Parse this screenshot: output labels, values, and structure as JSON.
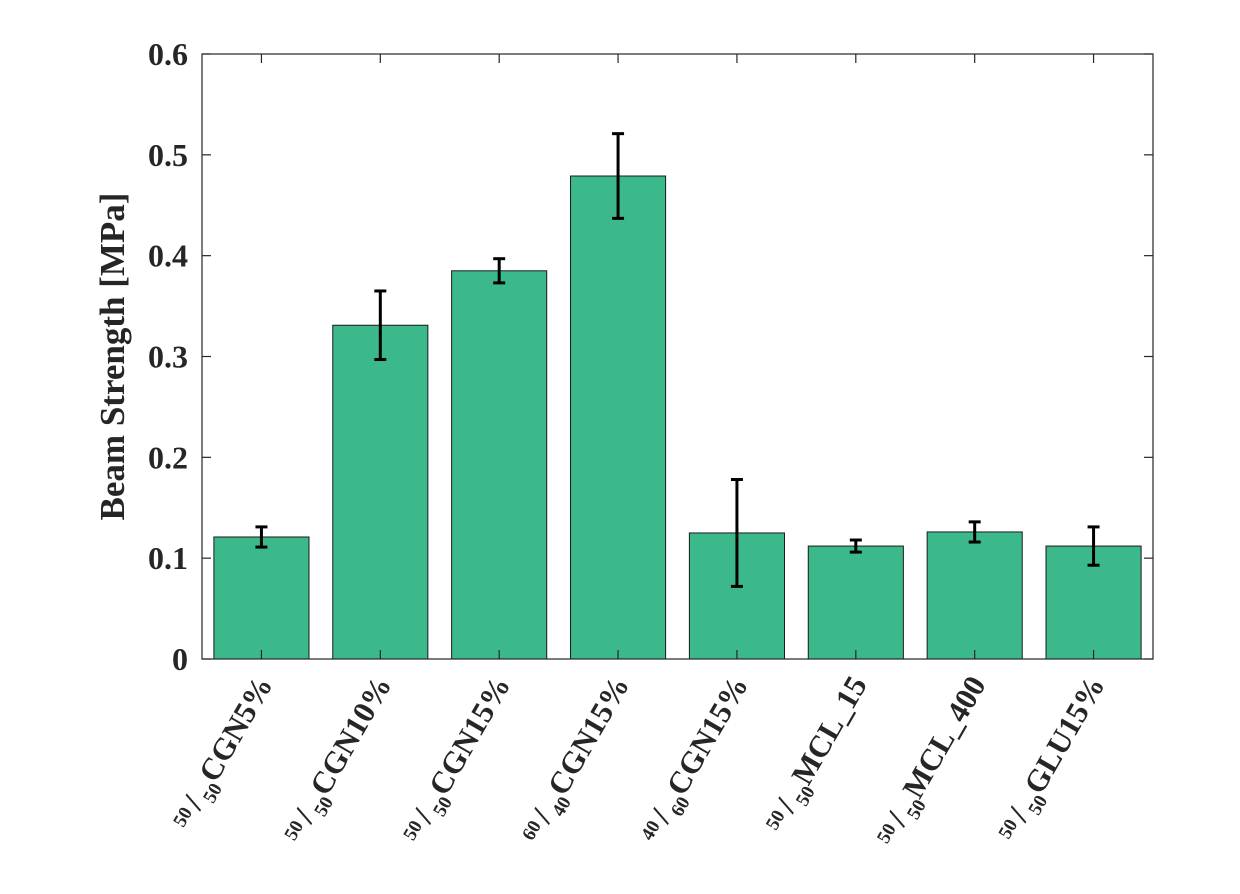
{
  "chart_data": {
    "type": "bar",
    "title": "",
    "xlabel": "",
    "ylabel": "Beam Strength [MPa]",
    "ylim": [
      0,
      0.6
    ],
    "yticks": [
      "0",
      "0.1",
      "0.2",
      "0.3",
      "0.4",
      "0.5",
      "0.6"
    ],
    "categories": [
      {
        "pre": "50",
        "mid": "50",
        "name": "CGN5%"
      },
      {
        "pre": "50",
        "mid": "50",
        "name": "CGN10%"
      },
      {
        "pre": "50",
        "mid": "50",
        "name": "CGN15%"
      },
      {
        "pre": "60",
        "mid": "40",
        "name": "CGN15%"
      },
      {
        "pre": "40",
        "mid": "60",
        "name": "CGN15%"
      },
      {
        "pre": "50",
        "mid": "50",
        "name": "MCL_15"
      },
      {
        "pre": "50",
        "mid": "50",
        "name": "MCL_400"
      },
      {
        "pre": "50",
        "mid": "50",
        "name": "GLU15%"
      }
    ],
    "values": [
      0.121,
      0.331,
      0.385,
      0.479,
      0.125,
      0.112,
      0.126,
      0.112
    ],
    "errors": [
      0.01,
      0.034,
      0.012,
      0.042,
      0.053,
      0.006,
      0.01,
      0.019
    ],
    "bar_color": "#3cb98a",
    "error_color": "#000000",
    "grid": false,
    "legend": "none"
  }
}
